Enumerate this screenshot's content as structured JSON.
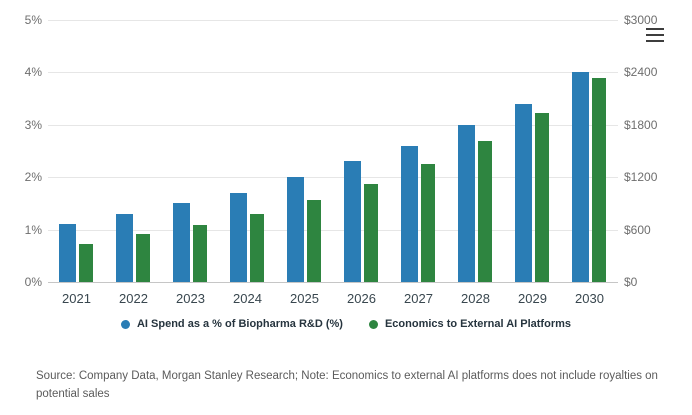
{
  "chart_data": {
    "type": "bar",
    "title": "",
    "categories": [
      "2021",
      "2022",
      "2023",
      "2024",
      "2025",
      "2026",
      "2027",
      "2028",
      "2029",
      "2030"
    ],
    "series": [
      {
        "name": "AI Spend as a % of Biopharma R&D (%)",
        "axis": "left",
        "color": "#2a7db5",
        "values": [
          1.1,
          1.3,
          1.5,
          1.7,
          2.0,
          2.3,
          2.6,
          3.0,
          3.4,
          4.0
        ]
      },
      {
        "name": "Economics to External AI Platforms",
        "axis": "right",
        "color": "#2e8540",
        "values": [
          440,
          550,
          650,
          780,
          940,
          1120,
          1350,
          1620,
          1930,
          2340
        ]
      }
    ],
    "left_axis": {
      "min": 0,
      "max": 5,
      "ticks": [
        "0%",
        "1%",
        "2%",
        "3%",
        "4%",
        "5%"
      ]
    },
    "right_axis": {
      "min": 0,
      "max": 3000,
      "ticks": [
        "$0",
        "$600",
        "$1200",
        "$1800",
        "$2400",
        "$3000"
      ]
    },
    "grid": true,
    "legend_position": "bottom"
  },
  "menu": {
    "icon": "hamburger-menu"
  },
  "source_note": "Source: Company Data, Morgan Stanley Research; Note: Economics to external AI platforms does not include royalties on potential sales"
}
